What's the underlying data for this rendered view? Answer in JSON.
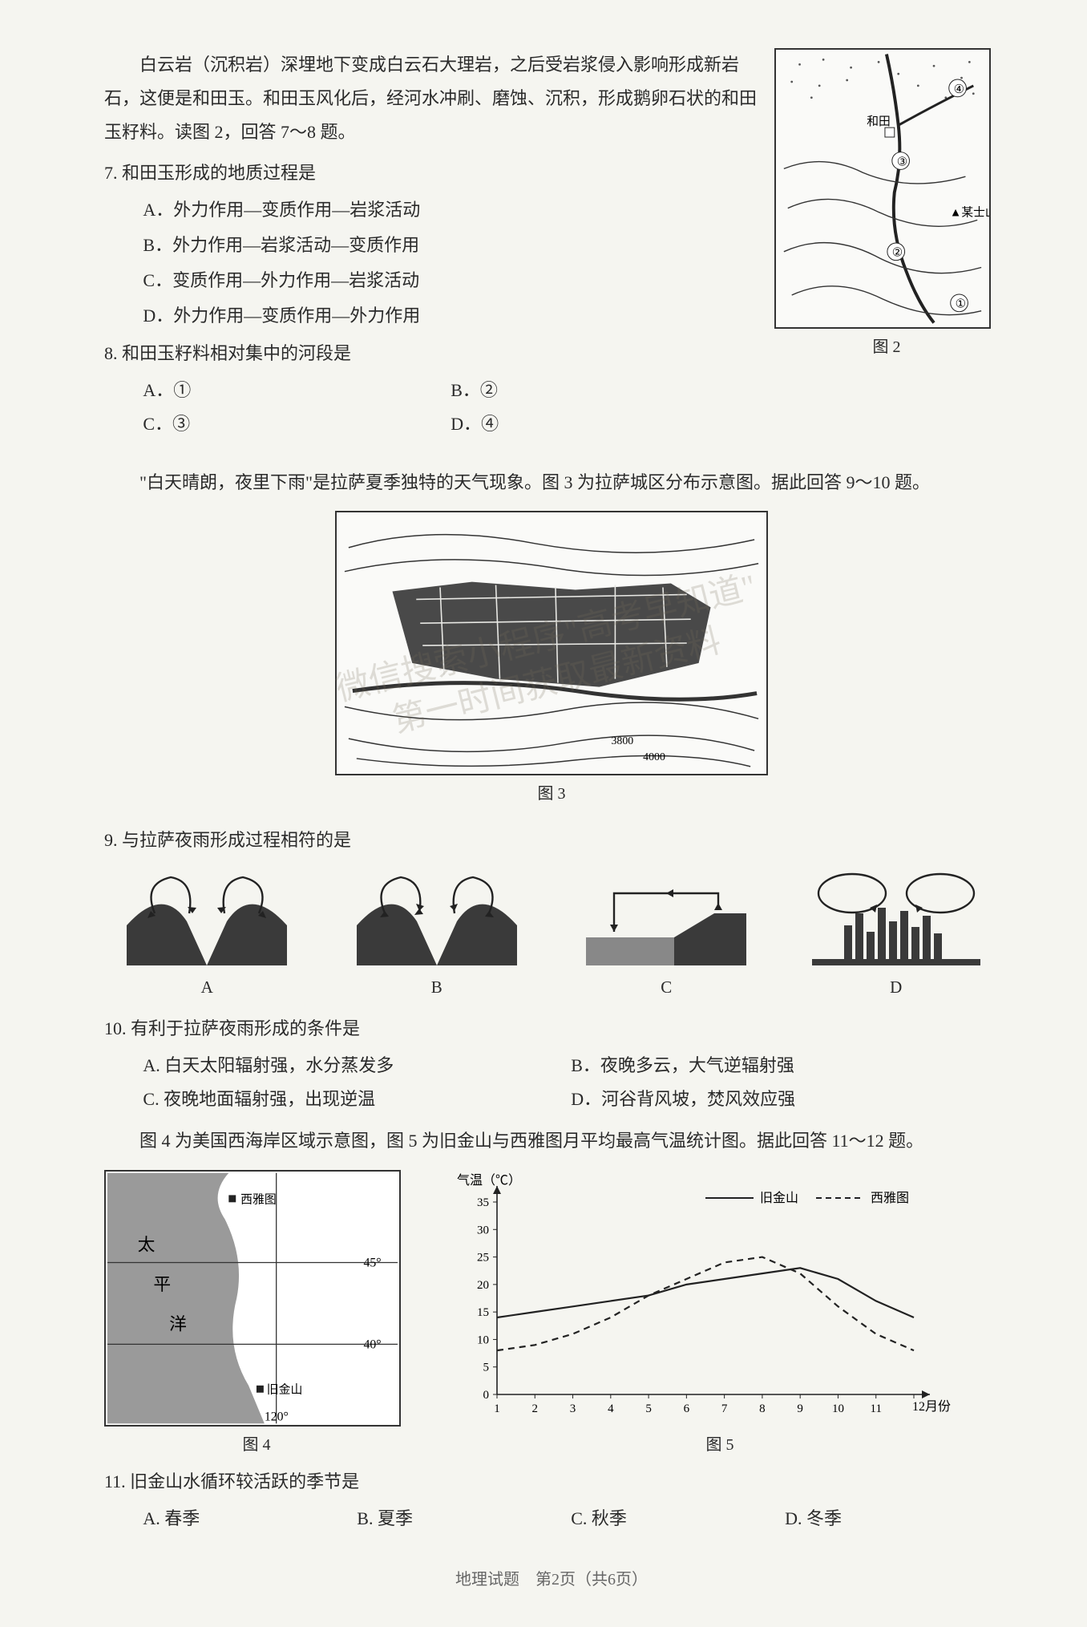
{
  "passage1": "白云岩（沉积岩）深埋地下变成白云石大理岩，之后受岩浆侵入影响形成新岩石，这便是和田玉。和田玉风化后，经河水冲刷、磨蚀、沉积，形成鹅卵石状的和田玉籽料。读图 2，回答 7～8 题。",
  "q7": {
    "title": "7. 和田玉形成的地质过程是",
    "A": "A．外力作用—变质作用—岩浆活动",
    "B": "B．外力作用—岩浆活动—变质作用",
    "C": "C．变质作用—外力作用—岩浆活动",
    "D": "D．外力作用—变质作用—外力作用"
  },
  "q8": {
    "title": "8. 和田玉籽料相对集中的河段是",
    "A": "A．①",
    "B": "B．②",
    "C": "C．③",
    "D": "D．④"
  },
  "fig2": {
    "caption": "图 2",
    "labels": {
      "hetian": "和田",
      "mountain": "▲某士山",
      "n1": "①",
      "n2": "②",
      "n3": "③",
      "n4": "④"
    }
  },
  "passage2": "\"白天晴朗，夜里下雨\"是拉萨夏季独特的天气现象。图 3 为拉萨城区分布示意图。据此回答 9～10 题。",
  "fig3": {
    "caption": "图 3",
    "contours": [
      "3800",
      "4000"
    ]
  },
  "q9": {
    "title": "9. 与拉萨夜雨形成过程相符的是",
    "labels": {
      "A": "A",
      "B": "B",
      "C": "C",
      "D": "D"
    }
  },
  "q10": {
    "title": "10. 有利于拉萨夜雨形成的条件是",
    "A": "A. 白天太阳辐射强，水分蒸发多",
    "B": "B．夜晚多云，大气逆辐射强",
    "C": "C. 夜晚地面辐射强，出现逆温",
    "D": "D．河谷背风坡，焚风效应强"
  },
  "passage3": "图 4 为美国西海岸区域示意图，图 5 为旧金山与西雅图月平均最高气温统计图。据此回答 11～12 题。",
  "fig4": {
    "caption": "图 4",
    "labels": {
      "pacific": "太 平 洋",
      "seattle": "西雅图",
      "sf": "旧金山",
      "lat45": "45°",
      "lat40": "40°",
      "lon120": "120°"
    }
  },
  "fig5": {
    "caption": "图 5",
    "ylabel": "气温（℃）",
    "xlabel": "月份",
    "legend": {
      "sf": "旧金山",
      "seattle": "西雅图"
    },
    "ylim": [
      0,
      35
    ],
    "ytick_step": 5,
    "xticks": [
      1,
      2,
      3,
      4,
      5,
      6,
      7,
      8,
      9,
      10,
      11,
      12
    ],
    "yticks": [
      "0",
      "5",
      "10",
      "15",
      "20",
      "25",
      "30",
      "35"
    ],
    "sf_values": [
      14,
      15,
      16,
      17,
      18,
      20,
      21,
      22,
      23,
      21,
      17,
      14
    ],
    "seattle_values": [
      8,
      9,
      11,
      14,
      18,
      21,
      24,
      25,
      22,
      16,
      11,
      8
    ],
    "colors": {
      "sf": "#2a2a2a",
      "seattle": "#2a2a2a"
    },
    "line_styles": {
      "sf": "solid",
      "seattle": "dashed"
    }
  },
  "q11": {
    "title": "11. 旧金山水循环较活跃的季节是",
    "A": "A. 春季",
    "B": "B. 夏季",
    "C": "C. 秋季",
    "D": "D. 冬季"
  },
  "watermark": {
    "line1": "微信搜索小程序\"高考早知道\"",
    "line2": "第一时间获取最新资料"
  },
  "footer": "地理试题　第2页（共6页）"
}
